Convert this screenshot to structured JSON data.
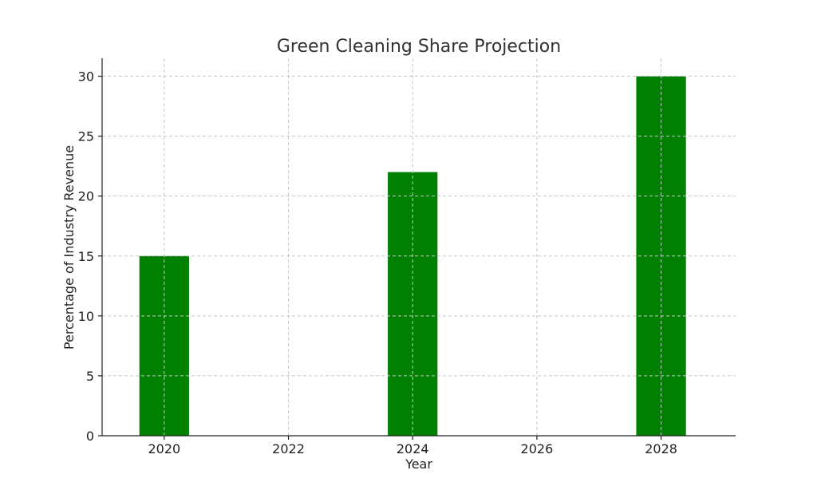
{
  "chart_data": {
    "type": "bar",
    "title": "Green Cleaning Share Projection",
    "xlabel": "Year",
    "ylabel": "Percentage of Industry Revenue",
    "x": [
      2020,
      2024,
      2028
    ],
    "values": [
      15,
      22,
      30
    ],
    "x_ticks": [
      "2020",
      "2022",
      "2024",
      "2026",
      "2028"
    ],
    "y_ticks": [
      "0",
      "5",
      "10",
      "15",
      "20",
      "25",
      "30"
    ],
    "xlim": [
      2019,
      2029.2
    ],
    "ylim": [
      0,
      31.5
    ],
    "bar_color": "#008000",
    "grid": true
  }
}
